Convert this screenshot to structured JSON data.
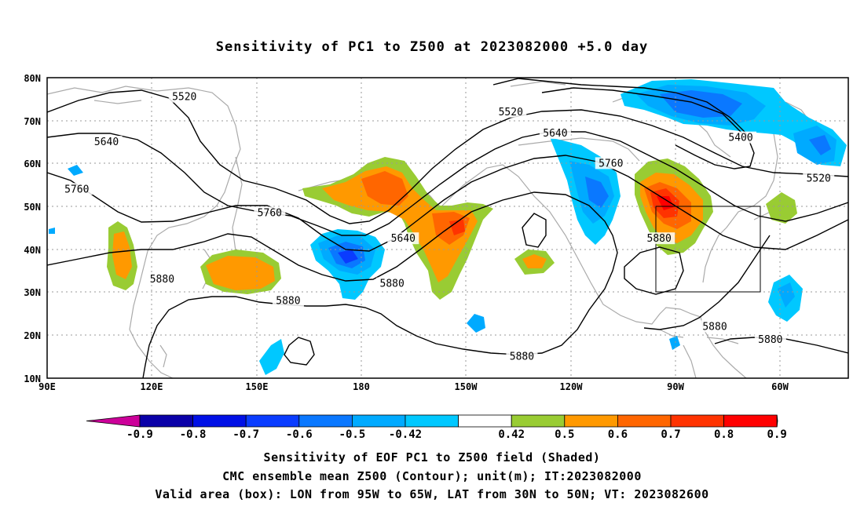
{
  "title": "Sensitivity of PC1 to Z500 at 2023082000 +5.0 day",
  "lat_labels": [
    "80N",
    "70N",
    "60N",
    "50N",
    "40N",
    "30N",
    "20N",
    "10N"
  ],
  "lon_labels": [
    "90E",
    "120E",
    "150E",
    "180",
    "150W",
    "120W",
    "90W",
    "60W"
  ],
  "contour_labels": [
    {
      "text": "5520",
      "lon": 127,
      "lat": 75.5
    },
    {
      "text": "5520",
      "lon": 215,
      "lat": 72
    },
    {
      "text": "5640",
      "lon": 106,
      "lat": 65
    },
    {
      "text": "5640",
      "lon": 227,
      "lat": 67
    },
    {
      "text": "5760",
      "lon": 98,
      "lat": 54
    },
    {
      "text": "5760",
      "lon": 242,
      "lat": 60
    },
    {
      "text": "5760",
      "lon": 150,
      "lat": 48.5
    },
    {
      "text": "5640",
      "lon": 186,
      "lat": 42.5
    },
    {
      "text": "5880",
      "lon": 121,
      "lat": 33
    },
    {
      "text": "5880",
      "lon": 183,
      "lat": 32
    },
    {
      "text": "5880",
      "lon": 155,
      "lat": 28
    },
    {
      "text": "5880",
      "lon": 255,
      "lat": 42.5
    },
    {
      "text": "5400",
      "lon": 277,
      "lat": 66
    },
    {
      "text": "5520",
      "lon": 298,
      "lat": 56.5
    },
    {
      "text": "5880",
      "lon": 270,
      "lat": 22
    },
    {
      "text": "5880",
      "lon": 285,
      "lat": 19
    },
    {
      "text": "5880",
      "lon": 218,
      "lat": 15
    }
  ],
  "colorbar": {
    "labels": [
      "-0.9",
      "-0.8",
      "-0.7",
      "-0.6",
      "-0.5",
      "-0.42",
      "0.42",
      "0.5",
      "0.6",
      "0.7",
      "0.8",
      "0.9"
    ],
    "colors": [
      "#0a00a8",
      "#0010e6",
      "#0a3cff",
      "#0a78ff",
      "#00aaff",
      "#00c8ff",
      "#ffffff",
      "#99cc33",
      "#ff9900",
      "#ff6600",
      "#ff3300",
      "#ff0000"
    ],
    "low_color": "#cc0099",
    "high_color": "#ff99cc"
  },
  "captions": [
    "Sensitivity of EOF PC1 to Z500 field (Shaded)",
    "CMC ensemble mean Z500 (Contour); unit(m); IT:2023082000",
    "Valid area (box): LON from 95W to 65W, LAT from 30N to 50N; VT: 2023082600"
  ],
  "valid_box": {
    "lon_west": 265,
    "lon_east": 295,
    "lat_south": 30,
    "lat_north": 50
  }
}
